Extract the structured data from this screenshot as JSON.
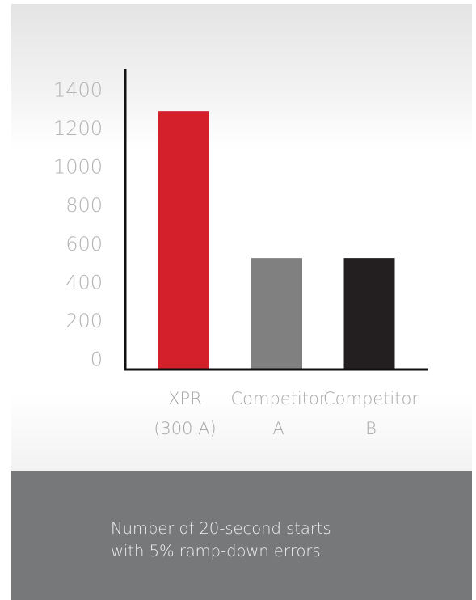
{
  "chart_data": {
    "type": "bar",
    "categories": [
      [
        "XPR",
        "(300 A)"
      ],
      [
        "Competitor",
        "A"
      ],
      [
        "Competitor",
        "B"
      ]
    ],
    "values": [
      1290,
      525,
      525
    ],
    "colors": [
      "#d4202a",
      "#808080",
      "#231f20"
    ],
    "yticks": [
      "0",
      "200",
      "400",
      "600",
      "800",
      "1000",
      "1200",
      "1400"
    ],
    "ylim": [
      0,
      1400
    ],
    "grid": false
  },
  "caption": {
    "line1": "Number of 20-second starts",
    "line2": "with 5% ramp-down errors"
  }
}
